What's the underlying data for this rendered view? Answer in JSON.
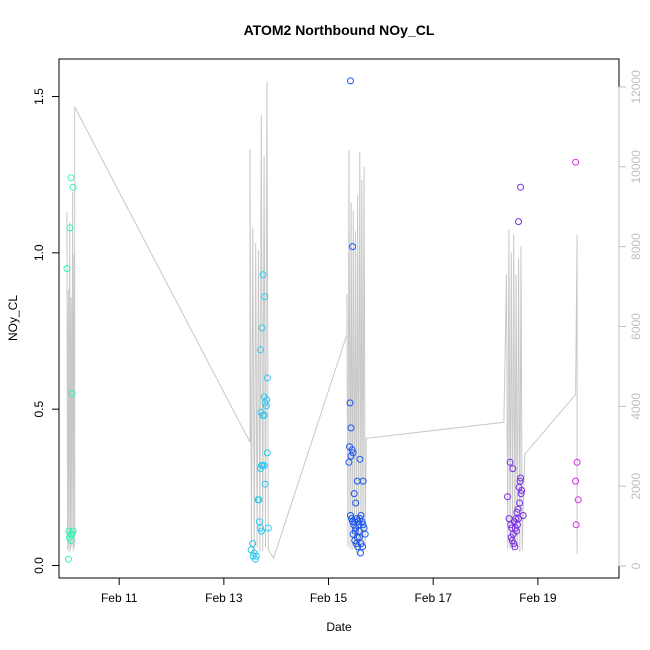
{
  "chart_data": {
    "type": "scatter",
    "title": "ATOM2 Northbound NOy_CL",
    "xlabel": "Date",
    "ylabel": "NOy_CL",
    "xlim": [
      9.85,
      20.55
    ],
    "ylim": [
      -0.04,
      1.62
    ],
    "y2lim": [
      -300,
      12700
    ],
    "grid": false,
    "x_ticks": [
      {
        "value": 11,
        "label": "Feb 11"
      },
      {
        "value": 13,
        "label": "Feb 13"
      },
      {
        "value": 15,
        "label": "Feb 15"
      },
      {
        "value": 17,
        "label": "Feb 17"
      },
      {
        "value": 19,
        "label": "Feb 19"
      }
    ],
    "y_ticks": [
      {
        "value": 0.0,
        "label": "0.0"
      },
      {
        "value": 0.5,
        "label": "0.5"
      },
      {
        "value": 1.0,
        "label": "1.0"
      },
      {
        "value": 1.5,
        "label": "1.5"
      }
    ],
    "y2_ticks": [
      {
        "value": 0,
        "label": "0"
      },
      {
        "value": 2000,
        "label": "2000"
      },
      {
        "value": 4000,
        "label": "4000"
      },
      {
        "value": 6000,
        "label": "6000"
      },
      {
        "value": 8000,
        "label": "8000"
      },
      {
        "value": 10000,
        "label": "10000"
      },
      {
        "value": 12000,
        "label": "12000"
      }
    ],
    "colors": {
      "altitude_line": "#c8c8c8",
      "axis": "#000000",
      "right_axis": "#bfbfbf"
    },
    "series": [
      {
        "color": "#33f5b0",
        "points": [
          [
            10.0,
            0.95
          ],
          [
            10.06,
            1.08
          ],
          [
            10.08,
            1.24
          ],
          [
            10.12,
            1.21
          ],
          [
            10.1,
            0.55
          ],
          [
            10.04,
            0.11
          ],
          [
            10.07,
            0.1
          ],
          [
            10.12,
            0.11
          ],
          [
            10.05,
            0.09
          ],
          [
            10.1,
            0.1
          ],
          [
            10.08,
            0.08
          ],
          [
            10.03,
            0.02
          ]
        ]
      },
      {
        "color": "#2ec8f0",
        "points": [
          [
            13.55,
            0.07
          ],
          [
            13.52,
            0.05
          ],
          [
            13.58,
            0.04
          ],
          [
            13.56,
            0.03
          ],
          [
            13.6,
            0.02
          ],
          [
            13.62,
            0.03
          ],
          [
            13.68,
            0.14
          ],
          [
            13.7,
            0.12
          ],
          [
            13.72,
            0.11
          ],
          [
            13.65,
            0.21
          ],
          [
            13.67,
            0.21
          ],
          [
            13.7,
            0.31
          ],
          [
            13.72,
            0.32
          ],
          [
            13.74,
            0.32
          ],
          [
            13.77,
            0.32
          ],
          [
            13.71,
            0.49
          ],
          [
            13.74,
            0.48
          ],
          [
            13.77,
            0.48
          ],
          [
            13.79,
            0.26
          ],
          [
            13.83,
            0.36
          ],
          [
            13.7,
            0.69
          ],
          [
            13.73,
            0.76
          ],
          [
            13.75,
            0.93
          ],
          [
            13.78,
            0.86
          ],
          [
            13.77,
            0.54
          ],
          [
            13.79,
            0.52
          ],
          [
            13.82,
            0.53
          ],
          [
            13.81,
            0.51
          ],
          [
            13.83,
            0.6
          ],
          [
            13.85,
            0.12
          ]
        ]
      },
      {
        "color": "#1a56f0",
        "points": [
          [
            15.42,
            1.55
          ],
          [
            15.46,
            1.02
          ],
          [
            15.41,
            0.52
          ],
          [
            15.43,
            0.44
          ],
          [
            15.4,
            0.38
          ],
          [
            15.45,
            0.37
          ],
          [
            15.43,
            0.35
          ],
          [
            15.47,
            0.36
          ],
          [
            15.39,
            0.33
          ],
          [
            15.55,
            0.27
          ],
          [
            15.49,
            0.23
          ],
          [
            15.52,
            0.2
          ],
          [
            15.6,
            0.34
          ],
          [
            15.66,
            0.27
          ],
          [
            15.42,
            0.16
          ],
          [
            15.44,
            0.15
          ],
          [
            15.46,
            0.14
          ],
          [
            15.48,
            0.13
          ],
          [
            15.5,
            0.14
          ],
          [
            15.52,
            0.12
          ],
          [
            15.54,
            0.15
          ],
          [
            15.56,
            0.14
          ],
          [
            15.58,
            0.13
          ],
          [
            15.6,
            0.15
          ],
          [
            15.62,
            0.16
          ],
          [
            15.64,
            0.14
          ],
          [
            15.66,
            0.13
          ],
          [
            15.68,
            0.12
          ],
          [
            15.7,
            0.1
          ],
          [
            15.5,
            0.08
          ],
          [
            15.53,
            0.07
          ],
          [
            15.56,
            0.06
          ],
          [
            15.59,
            0.09
          ],
          [
            15.62,
            0.07
          ],
          [
            15.65,
            0.06
          ],
          [
            15.47,
            0.1
          ],
          [
            15.51,
            0.11
          ],
          [
            15.55,
            0.09
          ],
          [
            15.58,
            0.11
          ],
          [
            15.61,
            0.04
          ]
        ]
      },
      {
        "color": "#7a2ee6",
        "points": [
          [
            18.42,
            0.22
          ],
          [
            18.45,
            0.15
          ],
          [
            18.47,
            0.33
          ],
          [
            18.52,
            0.31
          ],
          [
            18.48,
            0.13
          ],
          [
            18.5,
            0.12
          ],
          [
            18.53,
            0.1
          ],
          [
            18.49,
            0.09
          ],
          [
            18.51,
            0.08
          ],
          [
            18.54,
            0.07
          ],
          [
            18.56,
            0.06
          ],
          [
            18.55,
            0.14
          ],
          [
            18.58,
            0.15
          ],
          [
            18.6,
            0.17
          ],
          [
            18.62,
            0.18
          ],
          [
            18.57,
            0.12
          ],
          [
            18.59,
            0.11
          ],
          [
            18.61,
            0.13
          ],
          [
            18.63,
            0.15
          ],
          [
            18.65,
            0.2
          ],
          [
            18.64,
            0.25
          ],
          [
            18.66,
            0.27
          ],
          [
            18.68,
            0.23
          ],
          [
            18.67,
            0.28
          ],
          [
            18.69,
            0.24
          ],
          [
            18.72,
            0.16
          ],
          [
            18.63,
            1.1
          ],
          [
            18.67,
            1.21
          ]
        ]
      },
      {
        "color": "#d52ee6",
        "points": [
          [
            19.72,
            1.29
          ],
          [
            19.75,
            0.33
          ],
          [
            19.72,
            0.27
          ],
          [
            19.77,
            0.21
          ],
          [
            19.73,
            0.13
          ]
        ]
      }
    ]
  }
}
